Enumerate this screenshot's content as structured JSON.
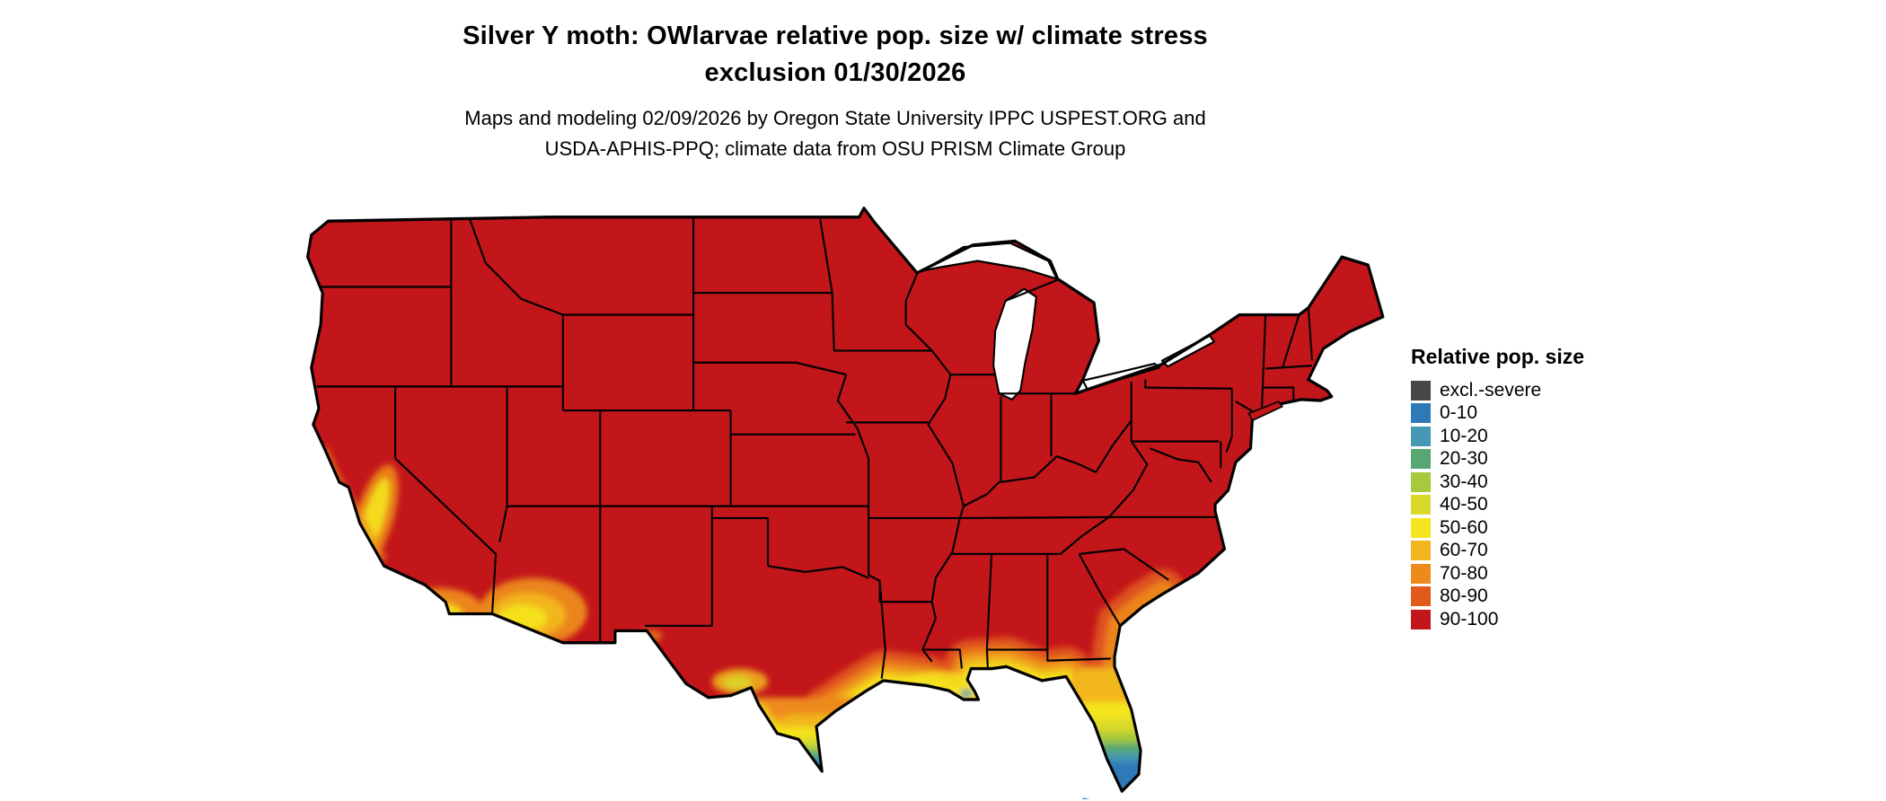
{
  "header": {
    "title_line1": "Silver Y moth: OWlarvae relative pop. size w/ climate stress",
    "title_line2": "exclusion 01/30/2026",
    "subtitle_line1": "Maps and modeling 02/09/2026 by Oregon State University IPPC USPEST.ORG and",
    "subtitle_line2": "USDA-APHIS-PPQ; climate data from OSU PRISM Climate Group"
  },
  "legend": {
    "title": "Relative pop. size",
    "items": [
      {
        "label": "excl.-severe",
        "color": "#474747"
      },
      {
        "label": "0-10",
        "color": "#2d7ab9"
      },
      {
        "label": "10-20",
        "color": "#4599b4"
      },
      {
        "label": "20-30",
        "color": "#57a773"
      },
      {
        "label": "30-40",
        "color": "#a8c83e"
      },
      {
        "label": "40-50",
        "color": "#d9d92c"
      },
      {
        "label": "50-60",
        "color": "#f4e51f"
      },
      {
        "label": "60-70",
        "color": "#f2b71e"
      },
      {
        "label": "70-80",
        "color": "#ed8a1b"
      },
      {
        "label": "80-90",
        "color": "#e05a1c"
      },
      {
        "label": "90-100",
        "color": "#c3161b"
      }
    ]
  },
  "map": {
    "name": "Continental United States relative population size map",
    "dominant_class": "90-100",
    "border_color": "#000000",
    "background_color": "#ffffff",
    "low_value_regions": [
      "southern Florida peninsula (grading from 60-70 down to 0-10 at the tip)",
      "southern Texas Rio Grande Valley (grading down to 0-10 at the tip)",
      "Gulf Coast fringe from Texas to the Florida panhandle (40-80)",
      "southern Louisiana (50-60 with small 10-30 patches)",
      "coastal Georgia and South Carolina (70-90 fringe)",
      "central and southern California coast and Central Valley (0-80 mosaic)",
      "southern Arizona desert (50-80)",
      "Big Bend / Rio Grande west Texas (40-70 patches)"
    ]
  }
}
